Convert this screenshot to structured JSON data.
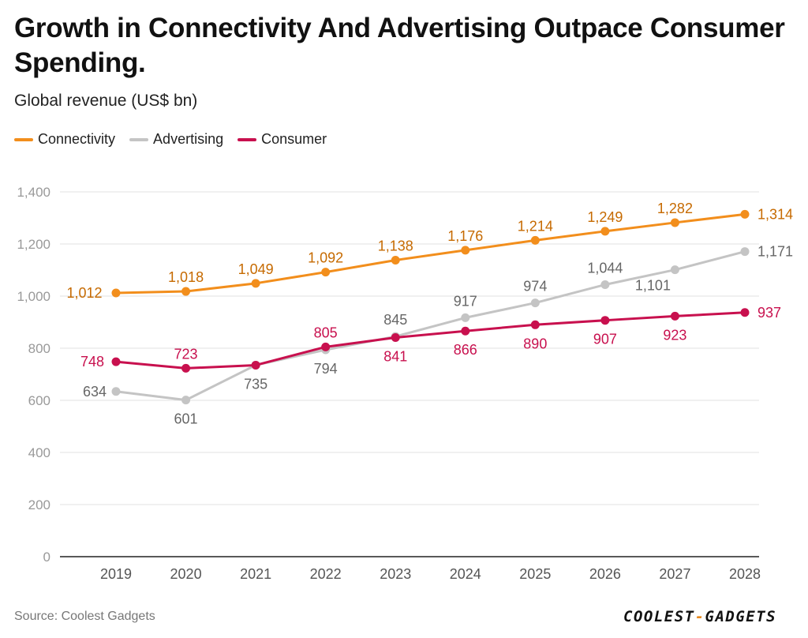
{
  "title": "Growth in Connectivity And Advertising Outpace Consumer Spending.",
  "subtitle": "Global revenue (US$ bn)",
  "source": "Source: Coolest Gadgets",
  "logo": {
    "left": "COOLEST",
    "dash": "-",
    "right": "GADGETS"
  },
  "chart_data": {
    "type": "line",
    "title": "Growth in Connectivity And Advertising Outpace Consumer Spending.",
    "ylabel": "Global revenue (US$ bn)",
    "xlabel": "",
    "ylim": [
      0,
      1400
    ],
    "yticks": [
      0,
      200,
      400,
      600,
      800,
      1000,
      1200,
      1400
    ],
    "ytick_labels": [
      "0",
      "200",
      "400",
      "600",
      "800",
      "1,000",
      "1,200",
      "1,400"
    ],
    "grid": true,
    "legend_position": "top-left",
    "categories": [
      "2019",
      "2020",
      "2021",
      "2022",
      "2023",
      "2024",
      "2025",
      "2026",
      "2027",
      "2028"
    ],
    "series": [
      {
        "name": "Connectivity",
        "color": "#f28e1c",
        "label_color": "#c66a00",
        "values": [
          1012,
          1018,
          1049,
          1092,
          1138,
          1176,
          1214,
          1249,
          1282,
          1314
        ],
        "labels": [
          "1,012",
          "1,018",
          "1,049",
          "1,092",
          "1,138",
          "1,176",
          "1,214",
          "1,249",
          "1,282",
          "1,314"
        ]
      },
      {
        "name": "Advertising",
        "color": "#c4c4c4",
        "label_color": "#666666",
        "values": [
          634,
          601,
          735,
          794,
          845,
          917,
          974,
          1044,
          1101,
          1171
        ],
        "labels": [
          "634",
          "601",
          "735",
          "794",
          "845",
          "917",
          "974",
          "1,044",
          "1,101",
          "1,171"
        ]
      },
      {
        "name": "Consumer",
        "color": "#c8104e",
        "label_color": "#c8104e",
        "values": [
          748,
          723,
          735,
          805,
          841,
          866,
          890,
          907,
          923,
          937
        ],
        "labels": [
          "748",
          "723",
          "",
          "805",
          "841",
          "866",
          "890",
          "907",
          "923",
          "937"
        ]
      }
    ]
  }
}
